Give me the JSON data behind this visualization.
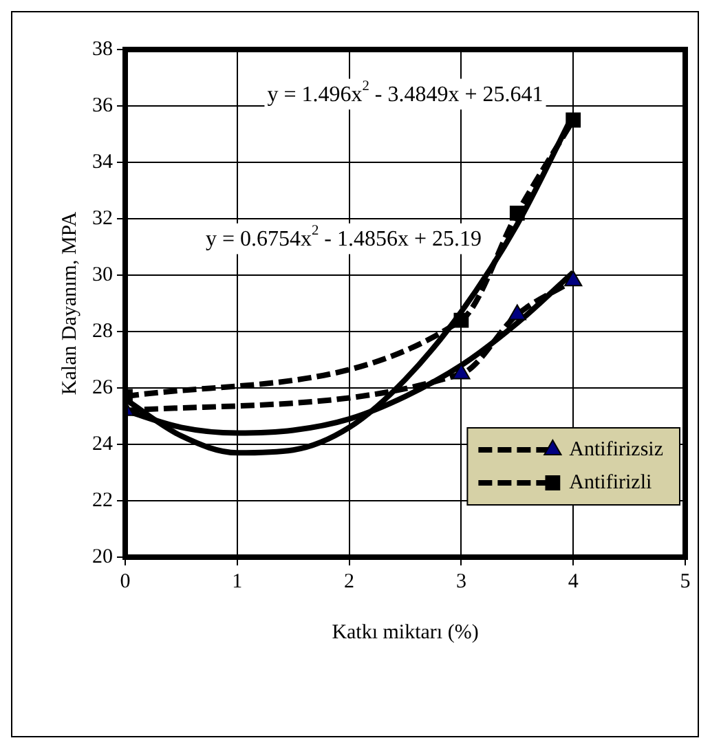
{
  "chart_data": {
    "type": "line",
    "xlabel": "Katkı miktarı (%)",
    "ylabel": "Kalan Dayanım, MPA",
    "xlim": [
      0,
      5
    ],
    "xticks": [
      0,
      1,
      2,
      3,
      4,
      5
    ],
    "ylim": [
      20,
      38
    ],
    "yticks": [
      20,
      22,
      24,
      26,
      28,
      30,
      32,
      34,
      36,
      38
    ],
    "grid": true,
    "legend": "bottom right",
    "line_style": "dashed",
    "series": [
      {
        "name": "Antifirizsiz",
        "color": "#000080",
        "marker": "triangle",
        "x": [
          0,
          3,
          3.5,
          4
        ],
        "values": [
          25.2,
          26.5,
          28.6,
          29.8
        ]
      },
      {
        "name": "Antifirizli",
        "color": "#000000",
        "marker": "square",
        "x": [
          0,
          3,
          3.5,
          4
        ],
        "values": [
          25.7,
          28.4,
          32.2,
          35.5
        ]
      },
      {
        "type": "line",
        "color": "#000000",
        "marker": "none",
        "line_style": "solid",
        "x": [
          0,
          0.5,
          1,
          1.5,
          2,
          2.5,
          3,
          3.5,
          4
        ],
        "values": [
          25.2,
          24.6,
          24.4,
          24.5,
          24.9,
          25.7,
          26.8,
          28.3,
          30.1
        ]
      },
      {
        "type": "line",
        "color": "#000000",
        "marker": "none",
        "line_style": "solid",
        "x": [
          0,
          0.5,
          1,
          1.5,
          2,
          2.5,
          3,
          3.5,
          4
        ],
        "values": [
          25.6,
          24.3,
          23.7,
          23.8,
          24.6,
          26.3,
          28.7,
          31.8,
          35.7
        ]
      }
    ],
    "annotations": [
      "y = 1.496x$^{2}$ - 3.4849x + 25.641",
      "y = 0.6754x$^{2}$ - 1.4856x + 25.19"
    ]
  }
}
